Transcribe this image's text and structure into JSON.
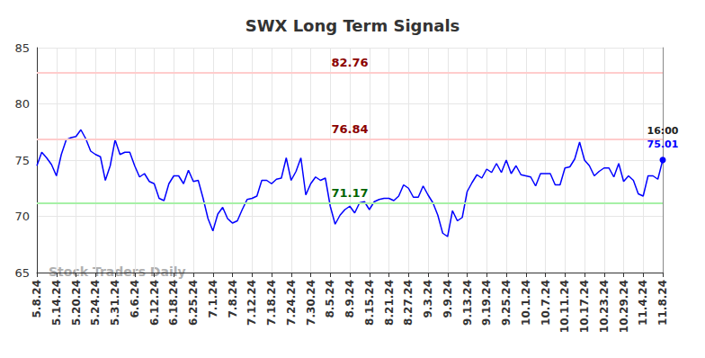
{
  "chart_data": {
    "type": "line",
    "title": "SWX Long Term Signals",
    "watermark": "Stock Traders Daily",
    "last_point_time": "16:00",
    "color": "#0000ff",
    "grid": true,
    "ylim": [
      65,
      85
    ],
    "yticks": [
      65,
      70,
      75,
      80,
      85
    ],
    "levels": [
      {
        "value": 82.76,
        "color": "#ffcccc",
        "label_color": "#8b0000"
      },
      {
        "value": 76.84,
        "color": "#ffcccc",
        "label_color": "#8b0000"
      },
      {
        "value": 71.17,
        "color": "#a6f0a6",
        "label_color": "#006400"
      }
    ],
    "categories": [
      "5.8.24",
      null,
      null,
      null,
      "5.14.24",
      null,
      null,
      null,
      "5.20.24",
      null,
      null,
      null,
      "5.24.24",
      null,
      null,
      null,
      "5.31.24",
      null,
      null,
      null,
      "6.6.24",
      null,
      null,
      null,
      "6.12.24",
      null,
      null,
      null,
      "6.18.24",
      null,
      null,
      null,
      "6.25.24",
      null,
      null,
      null,
      "7.1.24",
      null,
      null,
      null,
      "7.8.24",
      null,
      null,
      null,
      "7.12.24",
      null,
      null,
      null,
      "7.18.24",
      null,
      null,
      null,
      "7.24.24",
      null,
      null,
      null,
      "7.30.24",
      null,
      null,
      null,
      "8.5.24",
      null,
      null,
      null,
      "8.9.24",
      null,
      null,
      null,
      "8.15.24",
      null,
      null,
      null,
      "8.21.24",
      null,
      null,
      null,
      "8.27.24",
      null,
      null,
      null,
      "9.3.24",
      null,
      null,
      null,
      "9.9.24",
      null,
      null,
      null,
      "9.13.24",
      null,
      null,
      null,
      "9.19.24",
      null,
      null,
      null,
      "9.25.24",
      null,
      null,
      null,
      "10.1.24",
      null,
      null,
      null,
      "10.7.24",
      null,
      null,
      null,
      "10.11.24",
      null,
      null,
      null,
      "10.17.24",
      null,
      null,
      null,
      "10.23.24",
      null,
      null,
      null,
      "10.29.24",
      null,
      null,
      null,
      "11.4.24",
      null,
      null,
      null,
      "11.8.24"
    ],
    "values": [
      74.5,
      75.7,
      75.2,
      74.6,
      73.6,
      75.5,
      76.8,
      77.0,
      77.1,
      77.7,
      76.9,
      75.8,
      75.5,
      75.3,
      73.2,
      74.5,
      76.8,
      75.5,
      75.7,
      75.7,
      74.5,
      73.5,
      73.8,
      73.1,
      72.9,
      71.6,
      71.4,
      72.9,
      73.6,
      73.6,
      72.9,
      74.1,
      73.1,
      73.2,
      71.6,
      69.8,
      68.7,
      70.2,
      70.8,
      69.8,
      69.4,
      69.6,
      70.6,
      71.5,
      71.6,
      71.8,
      73.2,
      73.2,
      72.9,
      73.3,
      73.4,
      75.2,
      73.2,
      74.0,
      75.2,
      71.9,
      72.9,
      73.5,
      73.2,
      73.4,
      70.9,
      69.3,
      70.1,
      70.6,
      70.9,
      70.3,
      71.2,
      71.3,
      70.6,
      71.3,
      71.5,
      71.6,
      71.6,
      71.4,
      71.8,
      72.8,
      72.5,
      71.7,
      71.7,
      72.7,
      71.9,
      71.2,
      70.1,
      68.5,
      68.2,
      70.5,
      69.6,
      69.9,
      72.2,
      73.0,
      73.7,
      73.4,
      74.2,
      73.9,
      74.7,
      73.9,
      75.0,
      73.8,
      74.5,
      73.7,
      73.6,
      73.5,
      72.7,
      73.8,
      73.8,
      73.8,
      72.8,
      72.8,
      74.3,
      74.4,
      75.1,
      76.6,
      75.0,
      74.5,
      73.6,
      74.0,
      74.3,
      74.3,
      73.5,
      74.7,
      73.1,
      73.6,
      73.2,
      72.0,
      71.8,
      73.6,
      73.6,
      73.3,
      75.01
    ]
  }
}
